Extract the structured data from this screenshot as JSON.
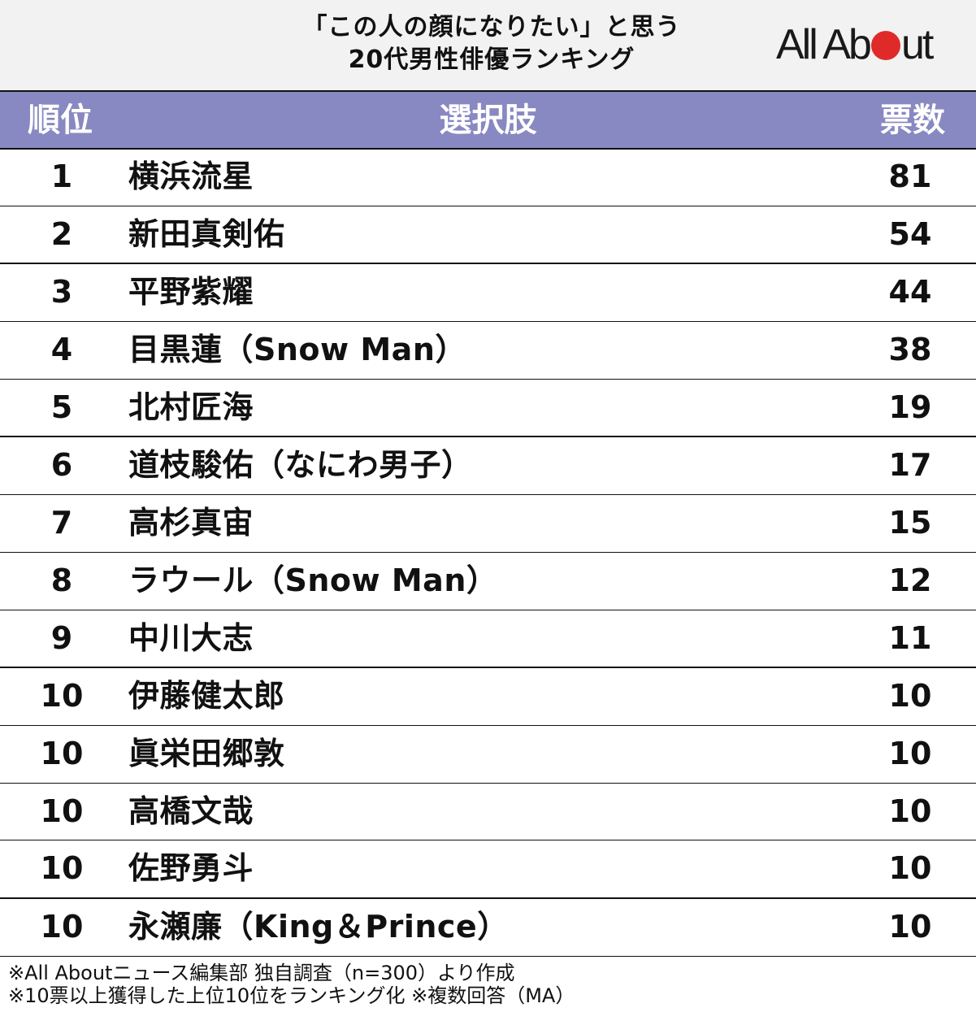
{
  "title": {
    "line1": "「この人の顔になりたい」と思う",
    "line2": "20代男性俳優ランキング"
  },
  "logo": {
    "text_before": "All Ab",
    "text_after": "ut",
    "dot_color": "#e02a2a"
  },
  "colors": {
    "header_bg": "#8888c2",
    "title_bg": "#f2f2f2",
    "rule": "#111111"
  },
  "table": {
    "headers": {
      "rank": "順位",
      "choice": "選択肢",
      "votes": "票数"
    },
    "rows": [
      {
        "rank": "1",
        "name": "横浜流星",
        "votes": "81"
      },
      {
        "rank": "2",
        "name": "新田真剣佑",
        "votes": "54"
      },
      {
        "rank": "3",
        "name": "平野紫耀",
        "votes": "44"
      },
      {
        "rank": "4",
        "name": "目黒蓮（Snow Man）",
        "votes": "38"
      },
      {
        "rank": "5",
        "name": "北村匠海",
        "votes": "19"
      },
      {
        "rank": "6",
        "name": "道枝駿佑（なにわ男子）",
        "votes": "17"
      },
      {
        "rank": "7",
        "name": "高杉真宙",
        "votes": "15"
      },
      {
        "rank": "8",
        "name": "ラウール（Snow Man）",
        "votes": "12"
      },
      {
        "rank": "9",
        "name": "中川大志",
        "votes": "11"
      },
      {
        "rank": "10",
        "name": "伊藤健太郎",
        "votes": "10"
      },
      {
        "rank": "10",
        "name": "眞栄田郷敦",
        "votes": "10"
      },
      {
        "rank": "10",
        "name": "高橋文哉",
        "votes": "10"
      },
      {
        "rank": "10",
        "name": "佐野勇斗",
        "votes": "10"
      },
      {
        "rank": "10",
        "name": "永瀬廉（King＆Prince）",
        "votes": "10"
      }
    ]
  },
  "footer": {
    "note1": "※All Aboutニュース編集部 独自調査（n=300）より作成",
    "note2": "※10票以上獲得した上位10位をランキング化 ※複数回答（MA）"
  },
  "chart_data": {
    "type": "table",
    "title": "「この人の顔になりたい」と思う20代男性俳優ランキング",
    "columns": [
      "順位",
      "選択肢",
      "票数"
    ],
    "categories": [
      "横浜流星",
      "新田真剣佑",
      "平野紫耀",
      "目黒蓮（Snow Man）",
      "北村匠海",
      "道枝駿佑（なにわ男子）",
      "高杉真宙",
      "ラウール（Snow Man）",
      "中川大志",
      "伊藤健太郎",
      "眞栄田郷敦",
      "高橋文哉",
      "佐野勇斗",
      "永瀬廉（King＆Prince）"
    ],
    "ranks": [
      1,
      2,
      3,
      4,
      5,
      6,
      7,
      8,
      9,
      10,
      10,
      10,
      10,
      10
    ],
    "values": [
      81,
      54,
      44,
      38,
      19,
      17,
      15,
      12,
      11,
      10,
      10,
      10,
      10,
      10
    ],
    "notes": [
      "※All Aboutニュース編集部 独自調査（n=300）より作成",
      "※10票以上獲得した上位10位をランキング化 ※複数回答（MA）"
    ]
  }
}
